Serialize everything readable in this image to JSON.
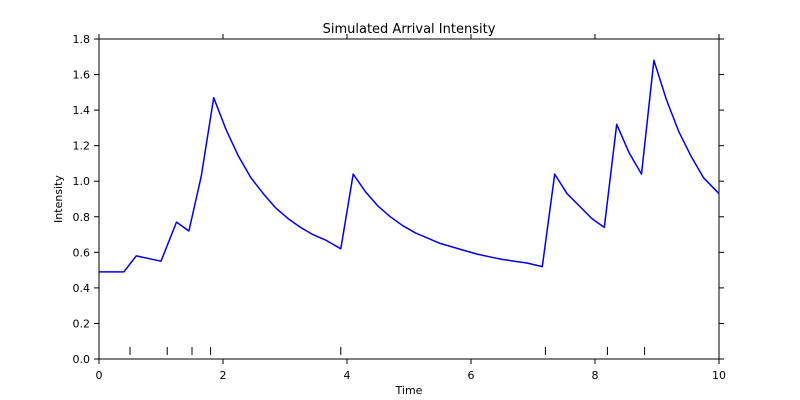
{
  "chart_data": {
    "type": "line",
    "title": "Simulated Arrival Intensity",
    "xlabel": "Time",
    "ylabel": "Intensity",
    "xlim": [
      0,
      10
    ],
    "ylim": [
      0,
      1.8
    ],
    "xticks": [
      0,
      2,
      4,
      6,
      8,
      10
    ],
    "yticks": [
      0.0,
      0.2,
      0.4,
      0.6,
      0.8,
      1.0,
      1.2,
      1.4,
      1.6,
      1.8
    ],
    "xtick_labels": [
      "0",
      "2",
      "4",
      "6",
      "8",
      "10"
    ],
    "ytick_labels": [
      "0.0",
      "0.2",
      "0.4",
      "0.6",
      "0.8",
      "1.0",
      "1.2",
      "1.4",
      "1.6",
      "1.8"
    ],
    "grid": false,
    "line_color": "#0000ee",
    "series": [
      {
        "x": [
          0.0,
          0.4,
          0.6,
          1.0,
          1.25,
          1.45,
          1.65,
          1.85,
          2.05,
          2.25,
          2.45,
          2.65,
          2.85,
          3.05,
          3.25,
          3.45,
          3.65,
          3.9,
          4.1,
          4.3,
          4.5,
          4.7,
          4.9,
          5.1,
          5.3,
          5.5,
          5.7,
          5.9,
          6.1,
          6.3,
          6.5,
          6.7,
          6.9,
          7.15,
          7.35,
          7.55,
          7.75,
          7.95,
          8.15,
          8.35,
          8.55,
          8.75,
          8.95,
          9.15,
          9.35,
          9.55,
          9.75,
          10.0
        ],
        "y": [
          0.49,
          0.49,
          0.58,
          0.55,
          0.77,
          0.72,
          1.03,
          1.47,
          1.29,
          1.14,
          1.02,
          0.93,
          0.85,
          0.79,
          0.74,
          0.7,
          0.67,
          0.62,
          1.04,
          0.94,
          0.86,
          0.8,
          0.75,
          0.71,
          0.68,
          0.65,
          0.63,
          0.61,
          0.59,
          0.575,
          0.56,
          0.55,
          0.54,
          0.52,
          1.04,
          0.93,
          0.86,
          0.79,
          0.74,
          1.32,
          1.16,
          1.04,
          1.68,
          1.46,
          1.28,
          1.14,
          1.02,
          0.93
        ]
      }
    ],
    "events": [
      0.5,
      1.1,
      1.5,
      1.8,
      3.9,
      7.2,
      8.2,
      8.8
    ]
  }
}
